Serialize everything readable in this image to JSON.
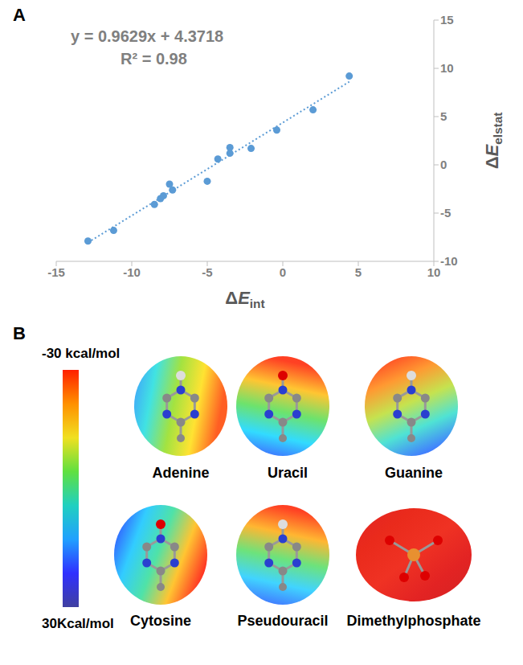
{
  "chart_data": {
    "type": "scatter",
    "panel_label": "A",
    "x": [
      -12.9,
      -11.2,
      -8.5,
      -8.1,
      -7.9,
      -7.5,
      -7.3,
      -5.0,
      -4.3,
      -3.5,
      -3.5,
      -2.1,
      -0.4,
      2.0,
      4.4
    ],
    "values": [
      -7.9,
      -6.8,
      -4.1,
      -3.5,
      -3.2,
      -2.0,
      -2.6,
      -1.7,
      0.6,
      1.2,
      1.8,
      1.7,
      3.6,
      5.7,
      9.2
    ],
    "color": "#5b9bd5",
    "marker": "circle",
    "xlim": [
      -15,
      10
    ],
    "xticks": [
      -15,
      -10,
      -5,
      0,
      5,
      10
    ],
    "ylim": [
      -10,
      15
    ],
    "yticks": [
      -10,
      -5,
      0,
      5,
      10,
      15
    ],
    "x_label": "ΔEint",
    "y_label": "ΔEelstat",
    "annotations": [
      "y = 0.9629x + 4.3718",
      "R² = 0.98"
    ],
    "trendline": {
      "slope": 0.9629,
      "intercept": 4.3718,
      "line_style": "dotted"
    },
    "grid": false
  },
  "panel_b": {
    "panel_label": "B",
    "color_bar": {
      "top_label": "-30 kcal/mol",
      "bottom_label": "30Kcal/mol"
    },
    "molecules": [
      "Adenine",
      "Uracil",
      "Guanine",
      "Cytosine",
      "Pseudouracil",
      "Dimethylphosphate"
    ]
  }
}
